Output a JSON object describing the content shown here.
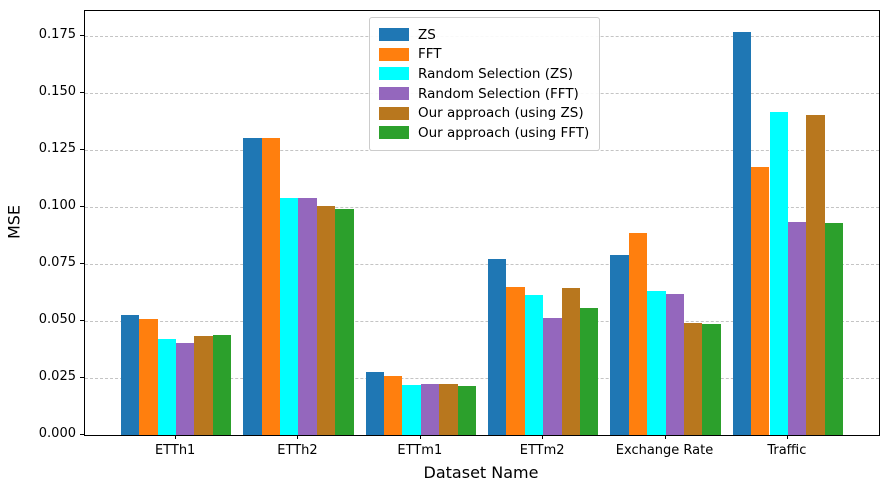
{
  "chart_data": {
    "type": "bar",
    "title": "",
    "xlabel": "Dataset Name",
    "ylabel": "MSE",
    "categories": [
      "ETTh1",
      "ETTh2",
      "ETTm1",
      "ETTm2",
      "Exchange Rate",
      "Traffic"
    ],
    "series": [
      {
        "name": "ZS",
        "color": "#1f77b4",
        "values": [
          0.0525,
          0.1305,
          0.0275,
          0.077,
          0.079,
          0.177
        ]
      },
      {
        "name": "FFT",
        "color": "#ff7f0e",
        "values": [
          0.051,
          0.1305,
          0.026,
          0.065,
          0.0885,
          0.1175
        ]
      },
      {
        "name": "Random Selection (ZS)",
        "color": "#00ffff",
        "values": [
          0.042,
          0.104,
          0.022,
          0.0615,
          0.063,
          0.1415
        ]
      },
      {
        "name": "Random Selection (FFT)",
        "color": "#9467bd",
        "values": [
          0.0405,
          0.104,
          0.0225,
          0.0515,
          0.062,
          0.0935
        ]
      },
      {
        "name": "Our approach (using ZS)",
        "color": "#b8771e",
        "values": [
          0.0435,
          0.1005,
          0.0225,
          0.0645,
          0.049,
          0.1405
        ]
      },
      {
        "name": "Our approach (using FFT)",
        "color": "#2ca02c",
        "values": [
          0.044,
          0.099,
          0.0215,
          0.0555,
          0.0485,
          0.093
        ]
      }
    ],
    "ylim": [
      0,
      0.186
    ],
    "ytick_step": 0.025,
    "yticks": [
      "0.000",
      "0.025",
      "0.050",
      "0.075",
      "0.100",
      "0.125",
      "0.150",
      "0.175"
    ],
    "grid": {
      "axis": "y",
      "style": "dashed",
      "color": "#c4c4c4"
    },
    "legend_position": "upper center"
  }
}
